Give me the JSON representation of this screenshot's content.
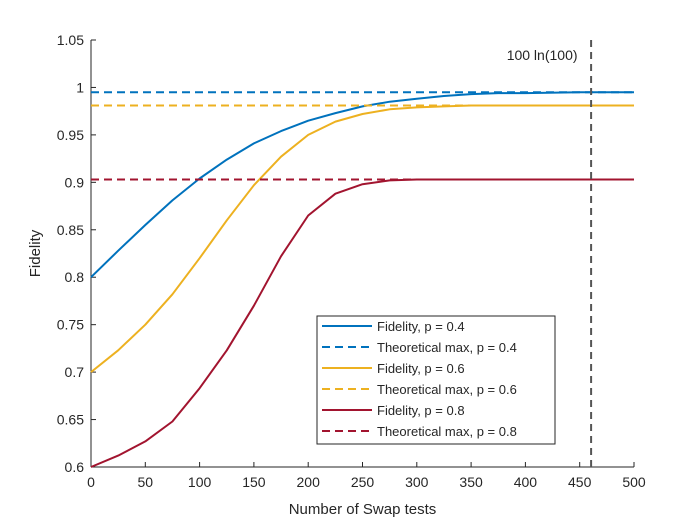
{
  "chart_data": {
    "type": "line",
    "title": "",
    "xlabel": "Number of Swap tests",
    "ylabel": "Fidelity",
    "xlim": [
      0,
      500
    ],
    "ylim": [
      0.6,
      1.05
    ],
    "x_ticks": [
      "0",
      "50",
      "100",
      "150",
      "200",
      "250",
      "300",
      "350",
      "400",
      "450",
      "500"
    ],
    "y_ticks": [
      "0.6",
      "0.65",
      "0.7",
      "0.75",
      "0.8",
      "0.85",
      "0.9",
      "0.95",
      "1",
      "1.05"
    ],
    "grid": false,
    "legend_position": "lower-right",
    "series": [
      {
        "name": "Fidelity, p = 0.4",
        "color": "#0072BD",
        "dash": "solid",
        "x": [
          0,
          25,
          50,
          75,
          100,
          125,
          150,
          175,
          200,
          225,
          250,
          275,
          300,
          325,
          350,
          375,
          400,
          450,
          500
        ],
        "y": [
          0.8,
          0.828,
          0.855,
          0.881,
          0.904,
          0.924,
          0.941,
          0.954,
          0.965,
          0.973,
          0.98,
          0.985,
          0.988,
          0.991,
          0.993,
          0.994,
          0.994,
          0.995,
          0.995
        ]
      },
      {
        "name": "Theoretical max, p = 0.4",
        "color": "#0072BD",
        "dash": "dashed",
        "x": [
          0,
          500
        ],
        "y": [
          0.995,
          0.995
        ]
      },
      {
        "name": "Fidelity, p = 0.6",
        "color": "#EDB120",
        "dash": "solid",
        "x": [
          0,
          25,
          50,
          75,
          100,
          125,
          150,
          175,
          200,
          225,
          250,
          275,
          300,
          325,
          350,
          400,
          450,
          500
        ],
        "y": [
          0.7,
          0.723,
          0.75,
          0.782,
          0.82,
          0.86,
          0.897,
          0.927,
          0.95,
          0.964,
          0.972,
          0.977,
          0.979,
          0.98,
          0.981,
          0.981,
          0.981,
          0.981
        ]
      },
      {
        "name": "Theoretical max, p = 0.6",
        "color": "#EDB120",
        "dash": "dashed",
        "x": [
          0,
          500
        ],
        "y": [
          0.981,
          0.981
        ]
      },
      {
        "name": "Fidelity, p = 0.8",
        "color": "#A2142F",
        "dash": "solid",
        "x": [
          0,
          25,
          50,
          75,
          100,
          125,
          150,
          175,
          200,
          225,
          250,
          275,
          300,
          350,
          400,
          450,
          500
        ],
        "y": [
          0.6,
          0.612,
          0.627,
          0.648,
          0.683,
          0.723,
          0.77,
          0.822,
          0.865,
          0.888,
          0.898,
          0.902,
          0.903,
          0.903,
          0.903,
          0.903,
          0.903
        ]
      },
      {
        "name": "Theoretical max, p = 0.8",
        "color": "#A2142F",
        "dash": "dashed",
        "x": [
          0,
          500
        ],
        "y": [
          0.903,
          0.903
        ]
      }
    ],
    "vertical_line": {
      "x": 460.5,
      "label": "100 ln(100)",
      "color": "#555555"
    }
  }
}
